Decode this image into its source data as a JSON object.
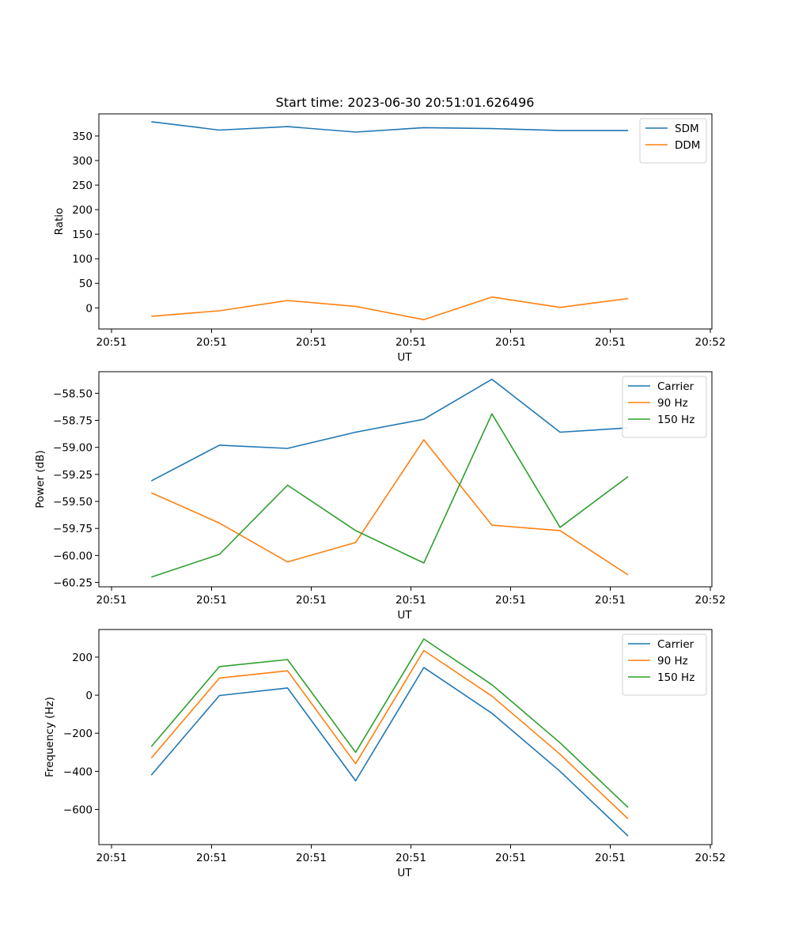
{
  "figure": {
    "title": "Start time: 2023-06-30 20:51:01.626496"
  },
  "chart_data": [
    {
      "type": "line",
      "xlabel": "UT",
      "ylabel": "Ratio",
      "x_tick_labels": [
        "20:51",
        "20:51",
        "20:51",
        "20:51",
        "20:51",
        "20:51",
        "20:52"
      ],
      "x": [
        1,
        2,
        3,
        4,
        5,
        6,
        7,
        8
      ],
      "xlim": [
        0.23,
        9.23
      ],
      "ylim": [
        -43,
        395
      ],
      "y_ticks": [
        0,
        50,
        100,
        150,
        200,
        250,
        300,
        350
      ],
      "y_tick_labels": [
        "0",
        "50",
        "100",
        "150",
        "200",
        "250",
        "300",
        "350"
      ],
      "legend_position": "top-right",
      "series": [
        {
          "name": "SDM",
          "color": "#1f77b4",
          "values": [
            379,
            362,
            369,
            358,
            367,
            365,
            361,
            361
          ]
        },
        {
          "name": "DDM",
          "color": "#ff7f0e",
          "values": [
            -17,
            -6,
            15,
            3,
            -24,
            22,
            1,
            19
          ]
        }
      ]
    },
    {
      "type": "line",
      "xlabel": "UT",
      "ylabel": "Power (dB)",
      "x_tick_labels": [
        "20:51",
        "20:51",
        "20:51",
        "20:51",
        "20:51",
        "20:51",
        "20:52"
      ],
      "x": [
        1,
        2,
        3,
        4,
        5,
        6,
        7,
        8
      ],
      "xlim": [
        0.23,
        9.23
      ],
      "ylim": [
        -60.29,
        -58.3
      ],
      "y_ticks": [
        -60.25,
        -60.0,
        -59.75,
        -59.5,
        -59.25,
        -59.0,
        -58.75,
        -58.5
      ],
      "y_tick_labels": [
        "−60.25",
        "−60.00",
        "−59.75",
        "−59.50",
        "−59.25",
        "−59.00",
        "−58.75",
        "−58.50"
      ],
      "legend_position": "top-right",
      "series": [
        {
          "name": "Carrier",
          "color": "#1f77b4",
          "values": [
            -59.31,
            -58.98,
            -59.01,
            -58.86,
            -58.74,
            -58.37,
            -58.86,
            -58.82
          ]
        },
        {
          "name": "90 Hz",
          "color": "#ff7f0e",
          "values": [
            -59.42,
            -59.7,
            -60.06,
            -59.88,
            -58.93,
            -59.72,
            -59.77,
            -60.18
          ]
        },
        {
          "name": "150 Hz",
          "color": "#2ca02c",
          "values": [
            -60.2,
            -59.99,
            -59.35,
            -59.77,
            -60.07,
            -58.69,
            -59.74,
            -59.27
          ]
        }
      ]
    },
    {
      "type": "line",
      "xlabel": "UT",
      "ylabel": "Frequency (Hz)",
      "x_tick_labels": [
        "20:51",
        "20:51",
        "20:51",
        "20:51",
        "20:51",
        "20:51",
        "20:52"
      ],
      "x": [
        1,
        2,
        3,
        4,
        5,
        6,
        7,
        8
      ],
      "xlim": [
        0.23,
        9.23
      ],
      "ylim": [
        -785,
        345
      ],
      "y_ticks": [
        -600,
        -400,
        -200,
        0,
        200
      ],
      "y_tick_labels": [
        "−600",
        "−400",
        "−200",
        "0",
        "200"
      ],
      "legend_position": "top-right",
      "series": [
        {
          "name": "Carrier",
          "color": "#1f77b4",
          "values": [
            -420,
            -2,
            38,
            -450,
            145,
            -95,
            -400,
            -740
          ]
        },
        {
          "name": "90 Hz",
          "color": "#ff7f0e",
          "values": [
            -330,
            90,
            128,
            -360,
            235,
            -5,
            -310,
            -650
          ]
        },
        {
          "name": "150 Hz",
          "color": "#2ca02c",
          "values": [
            -270,
            150,
            187,
            -300,
            295,
            55,
            -250,
            -590
          ]
        }
      ]
    }
  ]
}
